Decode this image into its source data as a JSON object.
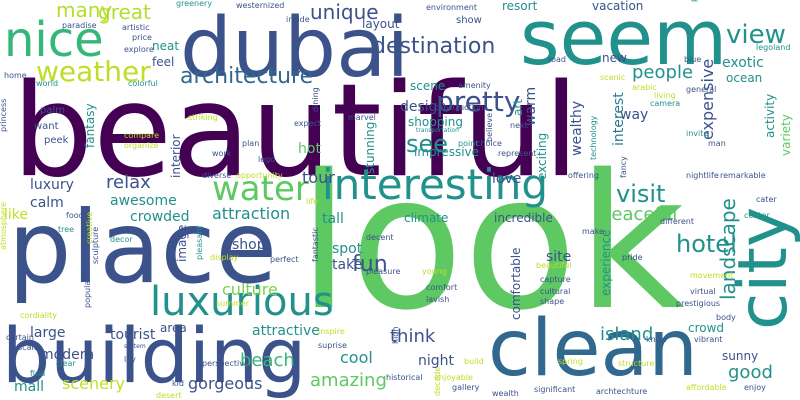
{
  "words": [
    {
      "text": "beautiful",
      "color": "#440154"
    },
    {
      "text": "look",
      "color": "#5ec962"
    },
    {
      "text": "place",
      "color": "#3b528b"
    },
    {
      "text": "dubai",
      "color": "#3b528b"
    },
    {
      "text": "seem",
      "color": "#21918c"
    },
    {
      "text": "building",
      "color": "#3b528b"
    },
    {
      "text": "clean",
      "color": "#31688e"
    },
    {
      "text": "city",
      "color": "#21918c"
    },
    {
      "text": "interesting",
      "color": "#21918c"
    },
    {
      "text": "luxurious",
      "color": "#21918c"
    },
    {
      "text": "nice",
      "color": "#35b779"
    },
    {
      "text": "water",
      "color": "#5ec962"
    },
    {
      "text": "weather",
      "color": "#bddf26"
    },
    {
      "text": "architecture",
      "color": "#31688e"
    },
    {
      "text": "destination",
      "color": "#3b528b"
    },
    {
      "text": "pretty",
      "color": "#3b528b"
    },
    {
      "text": "see",
      "color": "#21918c"
    },
    {
      "text": "visit",
      "color": "#21918c"
    },
    {
      "text": "view",
      "color": "#21918c"
    },
    {
      "text": "hotel",
      "color": "#21918c"
    },
    {
      "text": "landscape",
      "color": "#21918c"
    },
    {
      "text": "many",
      "color": "#b5de2b"
    },
    {
      "text": "great",
      "color": "#b5de2b"
    },
    {
      "text": "unique",
      "color": "#3b528b"
    },
    {
      "text": "people",
      "color": "#21918c"
    },
    {
      "text": "expensive",
      "color": "#3b528b"
    },
    {
      "text": "interest",
      "color": "#2a788e"
    },
    {
      "text": "exotic",
      "color": "#21918c"
    },
    {
      "text": "relax",
      "color": "#3b528b"
    },
    {
      "text": "tour",
      "color": "#3b528b"
    },
    {
      "text": "attraction",
      "color": "#21918c"
    },
    {
      "text": "peaceful",
      "color": "#5ec962"
    },
    {
      "text": "culture",
      "color": "#7ad151"
    },
    {
      "text": "fun",
      "color": "#3b528b"
    },
    {
      "text": "think",
      "color": "#3b528b"
    },
    {
      "text": "beach",
      "color": "#35b779"
    },
    {
      "text": "island",
      "color": "#21918c"
    },
    {
      "text": "amazing",
      "color": "#5ec962"
    },
    {
      "text": "good",
      "color": "#21918c"
    },
    {
      "text": "scenery",
      "color": "#bddf26"
    },
    {
      "text": "gorgeous",
      "color": "#3b528b"
    },
    {
      "text": "cool",
      "color": "#21918c"
    },
    {
      "text": "luxury",
      "color": "#3b528b"
    },
    {
      "text": "calm",
      "color": "#3b528b"
    },
    {
      "text": "like",
      "color": "#bddf26"
    },
    {
      "text": "awesome",
      "color": "#21918c"
    },
    {
      "text": "crowded",
      "color": "#21918c"
    },
    {
      "text": "large",
      "color": "#3b528b"
    },
    {
      "text": "tourist",
      "color": "#3b528b"
    },
    {
      "text": "modern",
      "color": "#3b528b"
    },
    {
      "text": "shop",
      "color": "#3b528b"
    },
    {
      "text": "attractive",
      "color": "#21918c"
    },
    {
      "text": "design",
      "color": "#3b528b"
    },
    {
      "text": "scene",
      "color": "#21918c"
    },
    {
      "text": "shopping",
      "color": "#21918c"
    },
    {
      "text": "stunning",
      "color": "#21918c"
    },
    {
      "text": "warm",
      "color": "#3b528b"
    },
    {
      "text": "wealthy",
      "color": "#3b528b"
    },
    {
      "text": "way",
      "color": "#3b528b"
    },
    {
      "text": "hot",
      "color": "#5ec962"
    },
    {
      "text": "impressive",
      "color": "#21918c"
    },
    {
      "text": "love",
      "color": "#3b528b"
    },
    {
      "text": "tall",
      "color": "#21918c"
    },
    {
      "text": "climate",
      "color": "#21918c"
    },
    {
      "text": "incredible",
      "color": "#3b528b"
    },
    {
      "text": "spot",
      "color": "#21918c"
    },
    {
      "text": "take",
      "color": "#3b528b"
    },
    {
      "text": "site",
      "color": "#3b528b"
    },
    {
      "text": "comfortable",
      "color": "#3b528b"
    },
    {
      "text": "experience",
      "color": "#21918c"
    },
    {
      "text": "night",
      "color": "#3b528b"
    },
    {
      "text": "sunny",
      "color": "#3b528b"
    },
    {
      "text": "crowd",
      "color": "#21918c"
    },
    {
      "text": "area",
      "color": "#3b528b"
    },
    {
      "text": "mall",
      "color": "#21918c"
    },
    {
      "text": "layout",
      "color": "#3b528b"
    },
    {
      "text": "neat",
      "color": "#21918c"
    },
    {
      "text": "feel",
      "color": "#3b528b"
    },
    {
      "text": "resort",
      "color": "#21918c"
    },
    {
      "text": "vacation",
      "color": "#3b528b"
    },
    {
      "text": "new",
      "color": "#3b528b"
    },
    {
      "text": "ocean",
      "color": "#21918c"
    },
    {
      "text": "activity",
      "color": "#21918c"
    },
    {
      "text": "variety",
      "color": "#5ec962"
    },
    {
      "text": "exciting",
      "color": "#21918c"
    },
    {
      "text": "art",
      "color": "#21918c"
    },
    {
      "text": "image",
      "color": "#3b528b"
    },
    {
      "text": "interior",
      "color": "#3b528b"
    },
    {
      "text": "fantasy",
      "color": "#21918c"
    },
    {
      "text": "paradise",
      "color": "#3b528b"
    },
    {
      "text": "artistic",
      "color": "#3b528b"
    },
    {
      "text": "price",
      "color": "#3b528b"
    },
    {
      "text": "explore",
      "color": "#3b528b"
    },
    {
      "text": "greenery",
      "color": "#21918c"
    },
    {
      "text": "westernized",
      "color": "#3b528b"
    },
    {
      "text": "environment",
      "color": "#3b528b"
    },
    {
      "text": "inside",
      "color": "#3b528b"
    },
    {
      "text": "show",
      "color": "#3b528b"
    },
    {
      "text": "plenty",
      "color": "#21918c"
    },
    {
      "text": "legoland",
      "color": "#21918c"
    },
    {
      "text": "road",
      "color": "#3b528b"
    },
    {
      "text": "blue",
      "color": "#3b528b"
    },
    {
      "text": "scenic",
      "color": "#bddf26"
    },
    {
      "text": "living",
      "color": "#bddf26"
    },
    {
      "text": "arabic",
      "color": "#bddf26"
    },
    {
      "text": "general",
      "color": "#3b528b"
    },
    {
      "text": "home",
      "color": "#3b528b"
    },
    {
      "text": "world",
      "color": "#21918c"
    },
    {
      "text": "colorful",
      "color": "#21918c"
    },
    {
      "text": "amenity",
      "color": "#3b528b"
    },
    {
      "text": "construction",
      "color": "#3b528b"
    },
    {
      "text": "choice",
      "color": "#3b528b"
    },
    {
      "text": "camera",
      "color": "#21918c"
    },
    {
      "text": "life",
      "color": "#bddf26"
    },
    {
      "text": "princess",
      "color": "#3b528b"
    },
    {
      "text": "palm",
      "color": "#3b528b"
    },
    {
      "text": "want",
      "color": "#3b528b"
    },
    {
      "text": "peek",
      "color": "#3b528b"
    },
    {
      "text": "compare",
      "color": "#bddf26"
    },
    {
      "text": "organize",
      "color": "#bddf26"
    },
    {
      "text": "striking",
      "color": "#bddf26"
    },
    {
      "text": "expect",
      "color": "#3b528b"
    },
    {
      "text": "marvel",
      "color": "#3b528b"
    },
    {
      "text": "transportation",
      "color": "#21918c"
    },
    {
      "text": "believe",
      "color": "#3b528b"
    },
    {
      "text": "point",
      "color": "#21918c"
    },
    {
      "text": "represent",
      "color": "#3b528b"
    },
    {
      "text": "technology",
      "color": "#21918c"
    },
    {
      "text": "fancy",
      "color": "#3b528b"
    },
    {
      "text": "offering",
      "color": "#3b528b"
    },
    {
      "text": "nightlife",
      "color": "#3b528b"
    },
    {
      "text": "remarkable",
      "color": "#3b528b"
    },
    {
      "text": "invite",
      "color": "#21918c"
    },
    {
      "text": "man",
      "color": "#3b528b"
    },
    {
      "text": "next",
      "color": "#3b528b"
    },
    {
      "text": "plan",
      "color": "#3b528b"
    },
    {
      "text": "work",
      "color": "#3b528b"
    },
    {
      "text": "lego",
      "color": "#3b528b"
    },
    {
      "text": "dining",
      "color": "#3b528b"
    },
    {
      "text": "atmosphere",
      "color": "#bddf26"
    },
    {
      "text": "food",
      "color": "#3b528b"
    },
    {
      "text": "tree",
      "color": "#21918c"
    },
    {
      "text": "creative",
      "color": "#bddf26"
    },
    {
      "text": "diverse",
      "color": "#3b528b"
    },
    {
      "text": "opportunity",
      "color": "#bddf26"
    },
    {
      "text": "decor",
      "color": "#21918c"
    },
    {
      "text": "sculpture",
      "color": "#3b528b"
    },
    {
      "text": "pleasant",
      "color": "#21918c"
    },
    {
      "text": "display",
      "color": "#bddf26"
    },
    {
      "text": "perfect",
      "color": "#3b528b"
    },
    {
      "text": "fantastic",
      "color": "#3b528b"
    },
    {
      "text": "decent",
      "color": "#3b528b"
    },
    {
      "text": "pleasure",
      "color": "#3b528b"
    },
    {
      "text": "young",
      "color": "#bddf26"
    },
    {
      "text": "comfort",
      "color": "#3b528b"
    },
    {
      "text": "lavish",
      "color": "#3b528b"
    },
    {
      "text": "beautiful",
      "color": "#bddf26"
    },
    {
      "text": "capture",
      "color": "#3b528b"
    },
    {
      "text": "cultural",
      "color": "#3b528b"
    },
    {
      "text": "shape",
      "color": "#3b528b"
    },
    {
      "text": "make",
      "color": "#3b528b"
    },
    {
      "text": "pride",
      "color": "#3b528b"
    },
    {
      "text": "different",
      "color": "#3b528b"
    },
    {
      "text": "center",
      "color": "#21918c"
    },
    {
      "text": "cater",
      "color": "#3b528b"
    },
    {
      "text": "movement",
      "color": "#bddf26"
    },
    {
      "text": "virtual",
      "color": "#3b528b"
    },
    {
      "text": "prestigious",
      "color": "#3b528b"
    },
    {
      "text": "body",
      "color": "#3b528b"
    },
    {
      "text": "vibrant",
      "color": "#3b528b"
    },
    {
      "text": "enjoy",
      "color": "#3b528b"
    },
    {
      "text": "affordable",
      "color": "#bddf26"
    },
    {
      "text": "know",
      "color": "#3b528b"
    },
    {
      "text": "structure",
      "color": "#bddf26"
    },
    {
      "text": "spring",
      "color": "#bddf26"
    },
    {
      "text": "build",
      "color": "#bddf26"
    },
    {
      "text": "enjoyable",
      "color": "#bddf26"
    },
    {
      "text": "gallery",
      "color": "#3b528b"
    },
    {
      "text": "significant",
      "color": "#3b528b"
    },
    {
      "text": "archtechture",
      "color": "#3b528b"
    },
    {
      "text": "wealth",
      "color": "#3b528b"
    },
    {
      "text": "decade",
      "color": "#bddf26"
    },
    {
      "text": "historical",
      "color": "#3b528b"
    },
    {
      "text": "perspective",
      "color": "#3b528b"
    },
    {
      "text": "inspire",
      "color": "#bddf26"
    },
    {
      "text": "suprise",
      "color": "#3b528b"
    },
    {
      "text": "high",
      "color": "#3b528b"
    },
    {
      "text": "kid",
      "color": "#3b528b"
    },
    {
      "text": "desert",
      "color": "#bddf26"
    },
    {
      "text": "summer",
      "color": "#bddf26"
    },
    {
      "text": "system",
      "color": "#3b528b"
    },
    {
      "text": "lay",
      "color": "#3b528b"
    },
    {
      "text": "scale",
      "color": "#3b528b"
    },
    {
      "text": "certain",
      "color": "#3b528b"
    },
    {
      "text": "find",
      "color": "#21918c"
    },
    {
      "text": "clear",
      "color": "#21918c"
    },
    {
      "text": "cordiality",
      "color": "#bddf26"
    },
    {
      "text": "popular",
      "color": "#3b528b"
    }
  ]
}
